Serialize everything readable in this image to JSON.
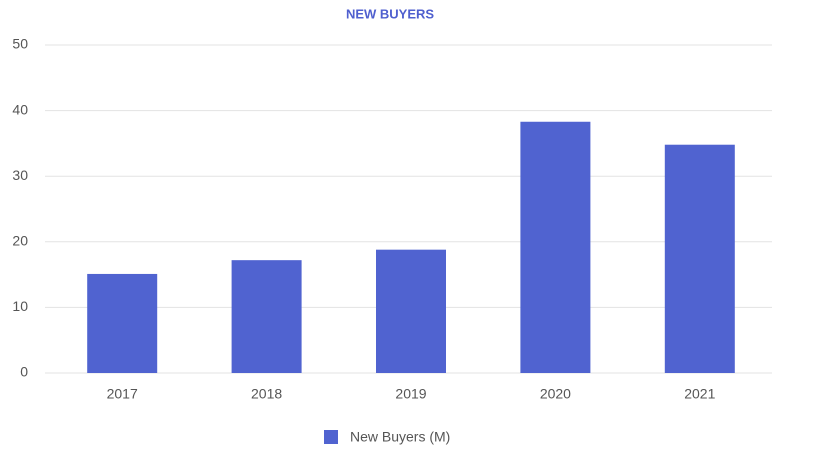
{
  "chart_data": {
    "type": "bar",
    "title": "NEW BUYERS",
    "categories": [
      "2017",
      "2018",
      "2019",
      "2020",
      "2021"
    ],
    "series": [
      {
        "name": "New Buyers (M)",
        "color": "#5063d0",
        "values": [
          15.1,
          17.2,
          18.8,
          38.3,
          34.8
        ]
      }
    ],
    "ylim": [
      0,
      50
    ],
    "yticks": [
      0,
      10,
      20,
      30,
      40,
      50
    ],
    "grid": true,
    "legend": "bottom"
  }
}
